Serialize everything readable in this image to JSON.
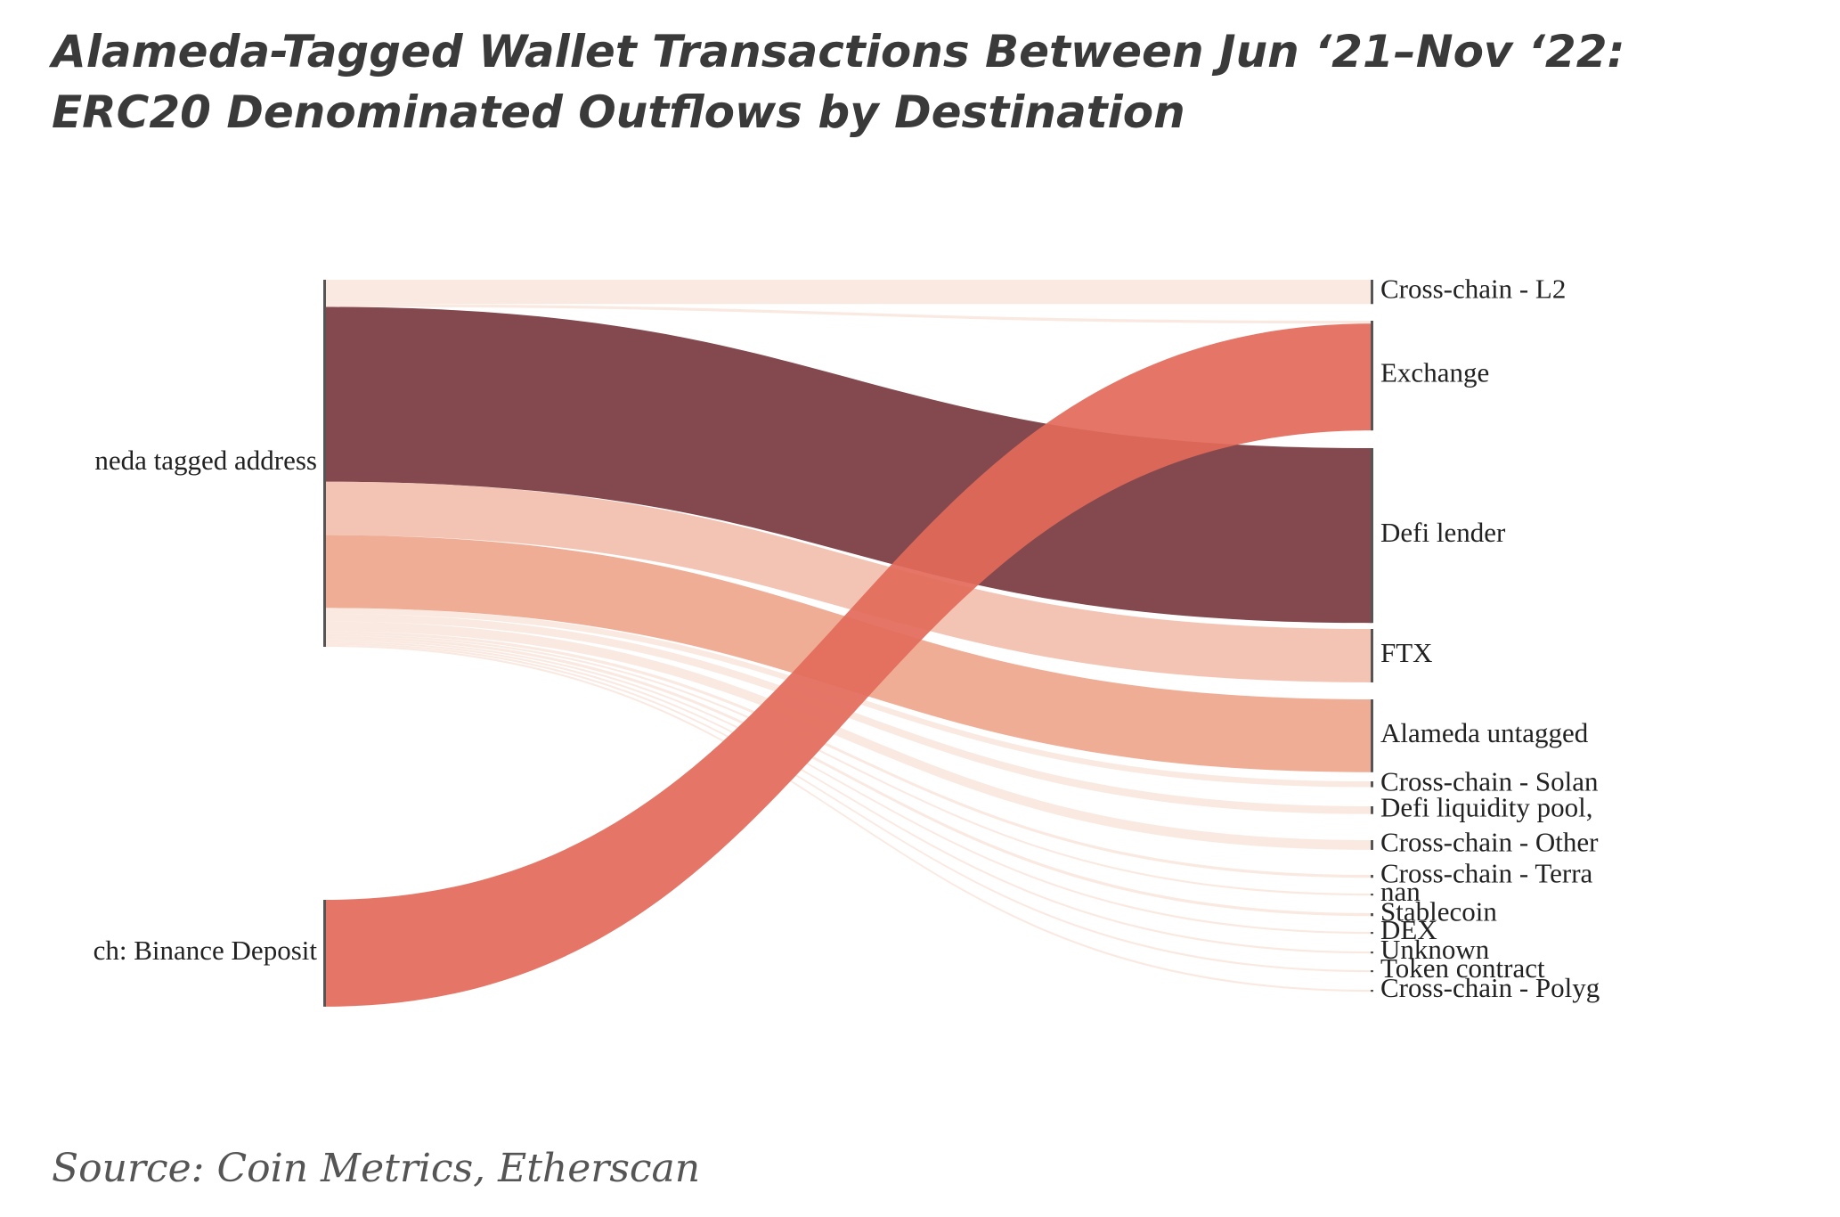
{
  "title": "Alameda-Tagged Wallet Transactions Between Jun ‘21–Nov ‘22: ERC20 Denominated Outflows by Destination",
  "source": "Source: Coin Metrics, Etherscan",
  "colors": {
    "defi_lender": "#7a3a3f",
    "exchange": "#e36a5a",
    "ftx": "#f2bfae",
    "alameda_untagged": "#efa68c",
    "minor": "#f8e1d7",
    "node": "#555555"
  },
  "chart_data": {
    "type": "sankey",
    "title": "Alameda-Tagged Wallet Transactions Between Jun ‘21–Nov ‘22: ERC20 Denominated Outflows by Destination",
    "sources": [
      {
        "id": "src_alameda",
        "label": "neda tagged address"
      },
      {
        "id": "src_binance",
        "label": "ch: Binance Deposit"
      }
    ],
    "targets": [
      {
        "id": "t_l2",
        "label": "Cross-chain - L2"
      },
      {
        "id": "t_exchange",
        "label": "Exchange"
      },
      {
        "id": "t_defi_lender",
        "label": "Defi lender"
      },
      {
        "id": "t_ftx",
        "label": "FTX"
      },
      {
        "id": "t_alameda_untagged",
        "label": "Alameda untagged"
      },
      {
        "id": "t_solana",
        "label": "Cross-chain - Solan"
      },
      {
        "id": "t_defi_lp",
        "label": "Defi liquidity pool,"
      },
      {
        "id": "t_other",
        "label": "Cross-chain - Other"
      },
      {
        "id": "t_terra",
        "label": "Cross-chain - Terra"
      },
      {
        "id": "t_nan",
        "label": "nan"
      },
      {
        "id": "t_stablecoin",
        "label": "Stablecoin"
      },
      {
        "id": "t_dex",
        "label": "DEX"
      },
      {
        "id": "t_unknown",
        "label": "Unknown"
      },
      {
        "id": "t_token",
        "label": "Token contract"
      },
      {
        "id": "t_polygon",
        "label": "Cross-chain - Polyg"
      }
    ],
    "links": [
      {
        "source": "src_alameda",
        "target": "t_l2",
        "value": 2.5,
        "color": "minor"
      },
      {
        "source": "src_alameda",
        "target": "t_exchange",
        "value": 0.3,
        "color": "minor"
      },
      {
        "source": "src_alameda",
        "target": "t_defi_lender",
        "value": 18.0,
        "color": "defi_lender"
      },
      {
        "source": "src_alameda",
        "target": "t_ftx",
        "value": 5.5,
        "color": "ftx"
      },
      {
        "source": "src_alameda",
        "target": "t_alameda_untagged",
        "value": 7.5,
        "color": "alameda_untagged"
      },
      {
        "source": "src_alameda",
        "target": "t_solana",
        "value": 0.6,
        "color": "minor"
      },
      {
        "source": "src_alameda",
        "target": "t_defi_lp",
        "value": 0.8,
        "color": "minor"
      },
      {
        "source": "src_alameda",
        "target": "t_other",
        "value": 1.0,
        "color": "minor"
      },
      {
        "source": "src_alameda",
        "target": "t_terra",
        "value": 0.3,
        "color": "minor"
      },
      {
        "source": "src_alameda",
        "target": "t_nan",
        "value": 0.2,
        "color": "minor"
      },
      {
        "source": "src_alameda",
        "target": "t_stablecoin",
        "value": 0.3,
        "color": "minor"
      },
      {
        "source": "src_alameda",
        "target": "t_dex",
        "value": 0.2,
        "color": "minor"
      },
      {
        "source": "src_alameda",
        "target": "t_unknown",
        "value": 0.2,
        "color": "minor"
      },
      {
        "source": "src_alameda",
        "target": "t_token",
        "value": 0.2,
        "color": "minor"
      },
      {
        "source": "src_alameda",
        "target": "t_polygon",
        "value": 0.2,
        "color": "minor"
      },
      {
        "source": "src_binance",
        "target": "t_exchange",
        "value": 11.0,
        "color": "exchange"
      }
    ]
  }
}
